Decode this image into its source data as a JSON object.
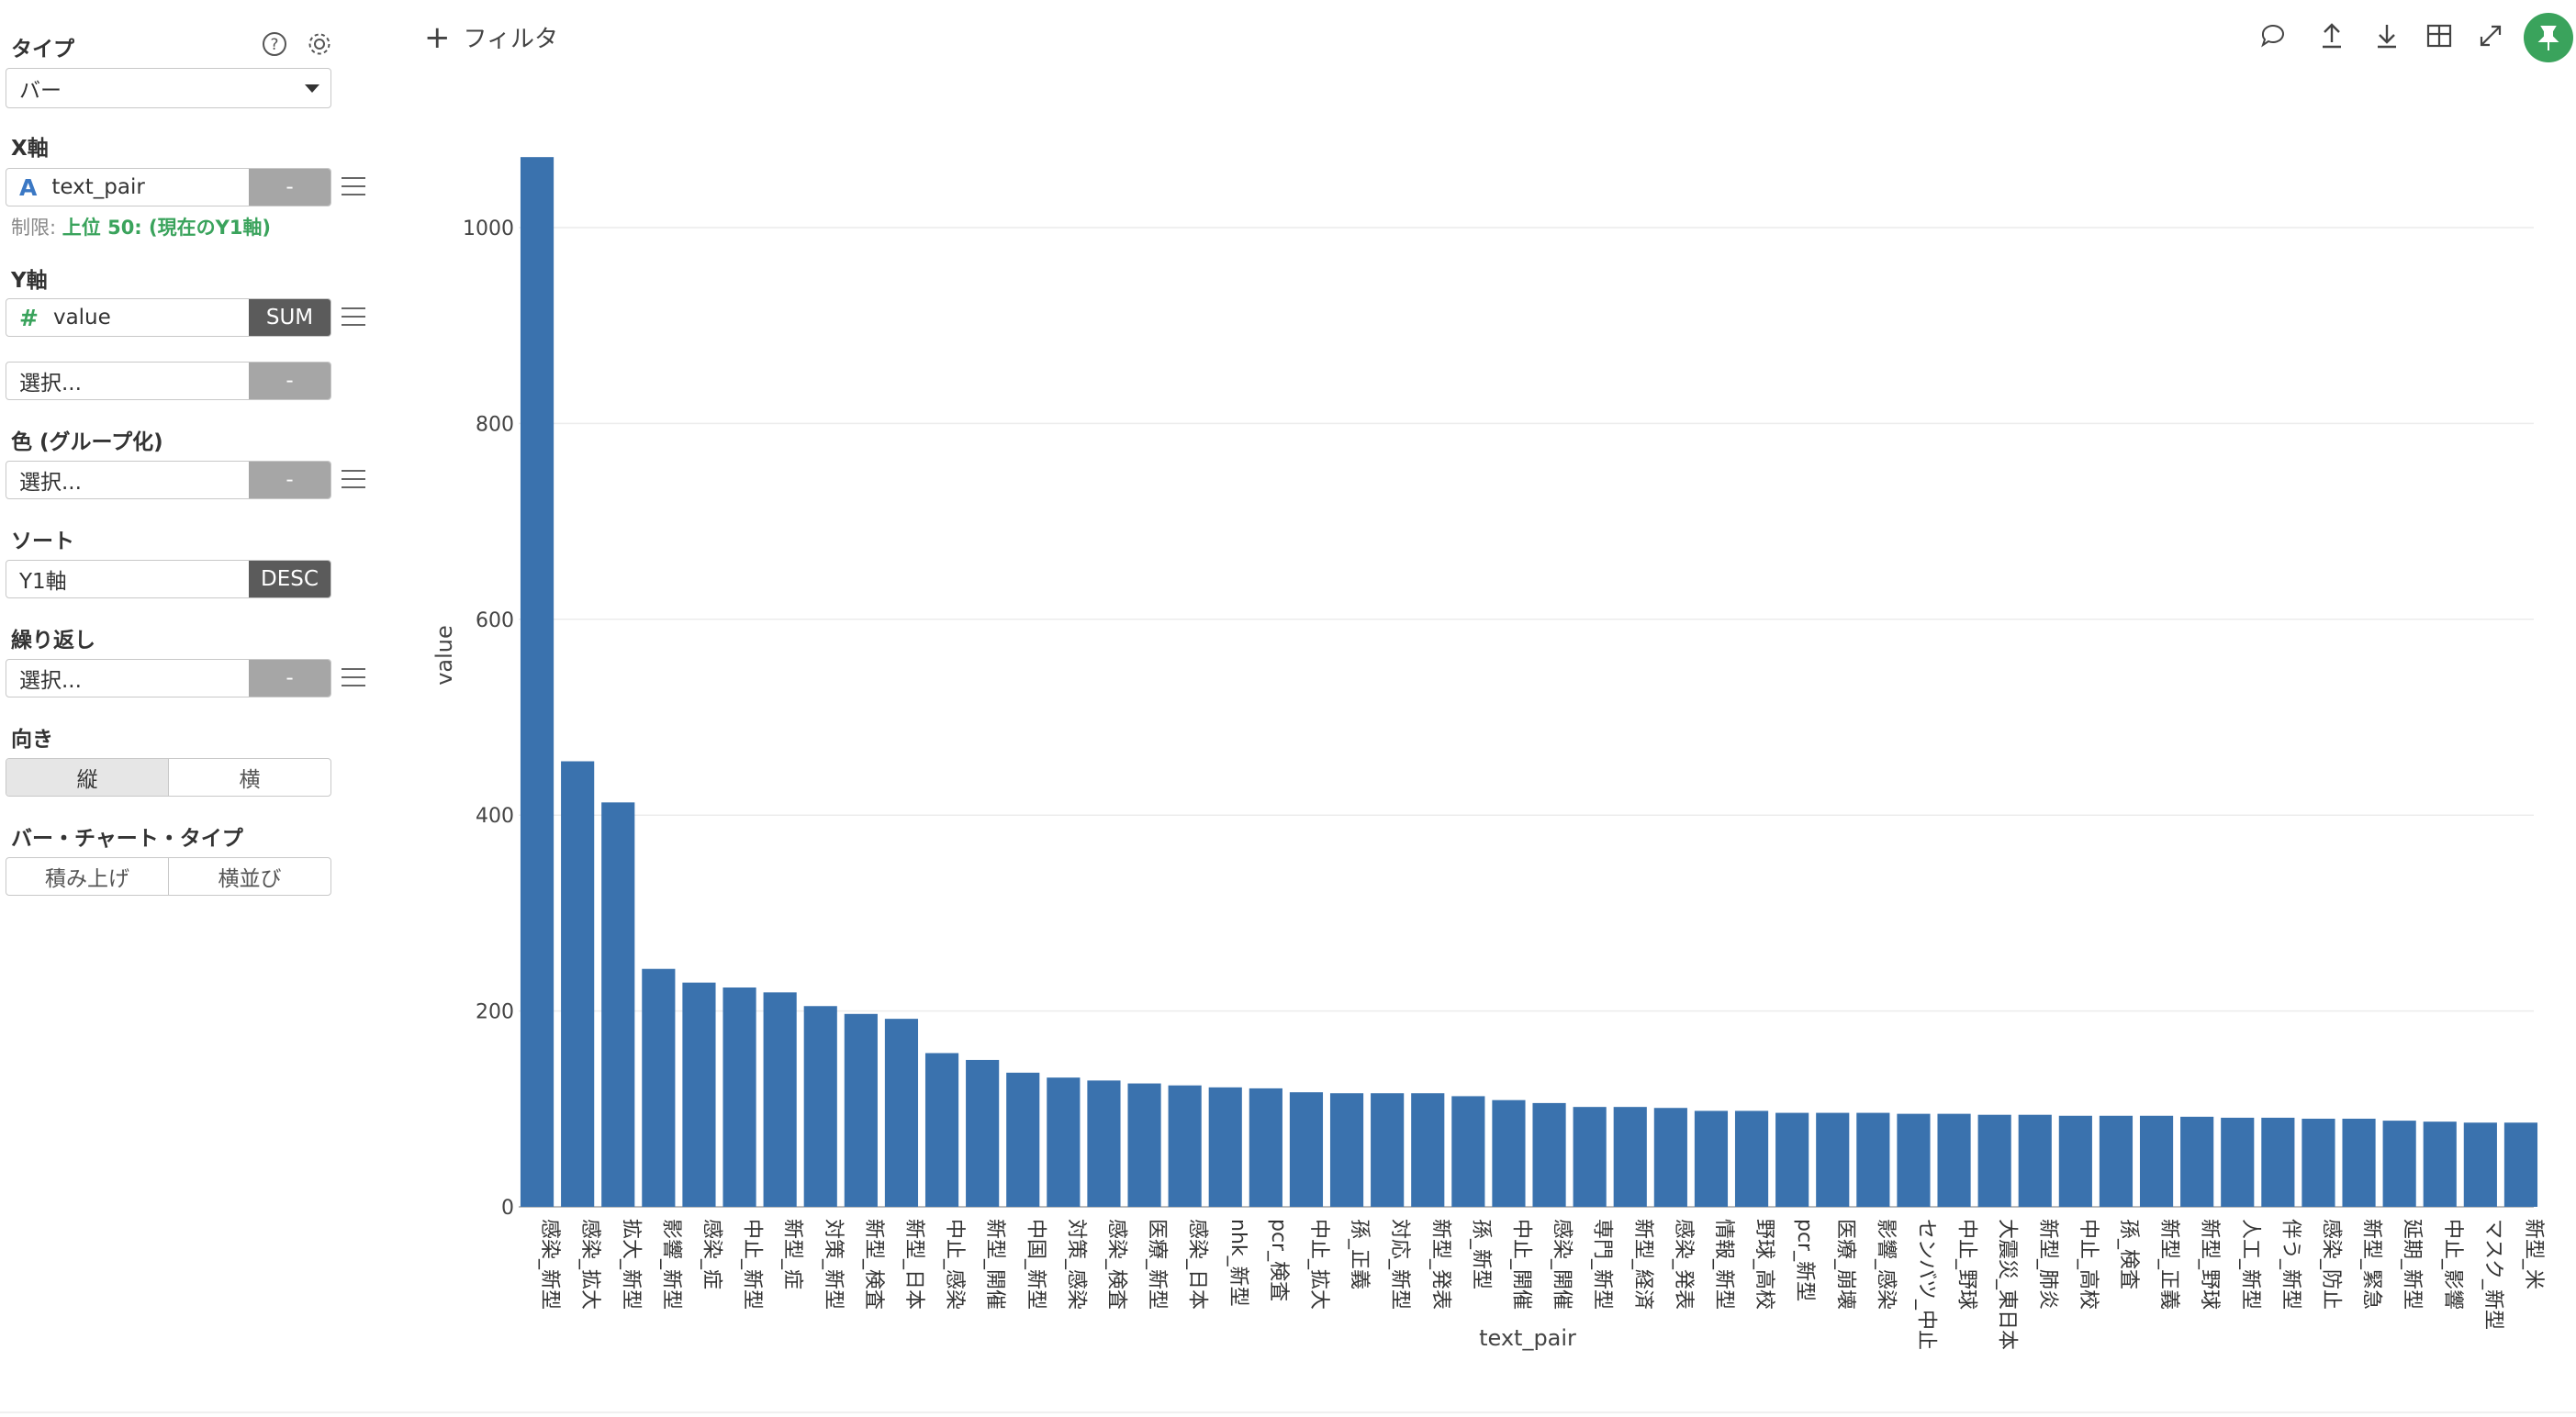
{
  "panel": {
    "type_label": "タイプ",
    "type_value": "バー",
    "xaxis_label": "X軸",
    "xaxis_field": "text_pair",
    "xaxis_field_icon": "A",
    "xaxis_agg": "-",
    "limit_prefix": "制限:",
    "limit_value": "上位 50: (現在のY1軸)",
    "yaxis_label": "Y軸",
    "yaxis_field": "value",
    "yaxis_field_icon": "#",
    "yaxis_agg": "SUM",
    "y2_placeholder": "選択...",
    "y2_agg": "-",
    "color_label": "色 (グループ化)",
    "color_placeholder": "選択...",
    "color_agg": "-",
    "sort_label": "ソート",
    "sort_field": "Y1軸",
    "sort_order": "DESC",
    "repeat_label": "繰り返し",
    "repeat_placeholder": "選択...",
    "repeat_agg": "-",
    "orientation_label": "向き",
    "orientation_vertical": "縦",
    "orientation_horizontal": "横",
    "bar_type_label": "バー・チャート・タイプ",
    "bar_type_stacked": "積み上げ",
    "bar_type_side": "横並び",
    "colors": {
      "accent_green": "#3aa35c",
      "xfield_icon": "#3b78c4",
      "yfield_icon": "#3aa35c"
    }
  },
  "toolbar": {
    "filter_label": "フィルタ",
    "icons": [
      "comment-icon",
      "upload-icon",
      "download-icon",
      "table-icon",
      "expand-icon",
      "pin-icon"
    ]
  },
  "chart_data": {
    "type": "bar",
    "xlabel": "text_pair",
    "ylabel": "value",
    "ylim": [
      0,
      1100
    ],
    "yticks": [
      0,
      200,
      400,
      600,
      800,
      1000
    ],
    "grid": true,
    "bar_color": "#3a72ae",
    "categories": [
      "感染_新型",
      "感染_拡大",
      "拡大_新型",
      "影響_新型",
      "感染_症",
      "中止_新型",
      "新型_症",
      "対策_新型",
      "新型_検査",
      "新型_日本",
      "中止_感染",
      "新型_開催",
      "中国_新型",
      "対策_感染",
      "感染_検査",
      "医療_新型",
      "感染_日本",
      "nhk_新型",
      "pcr_検査",
      "中止_拡大",
      "孫_正義",
      "対応_新型",
      "新型_発表",
      "孫_新型",
      "中止_開催",
      "感染_開催",
      "専門_新型",
      "新型_経済",
      "感染_発表",
      "情報_新型",
      "野球_高校",
      "pcr_新型",
      "医療_崩壊",
      "影響_感染",
      "センバツ_中止",
      "中止_野球",
      "大震災_東日本",
      "新型_肺炎",
      "中止_高校",
      "孫_検査",
      "新型_正義",
      "新型_野球",
      "人工_新型",
      "伴う_新型",
      "感染_防止",
      "新型_緊急",
      "延期_新型",
      "中止_影響",
      "マスク_新型",
      "新型_米"
    ],
    "values": [
      1072,
      455,
      413,
      243,
      229,
      224,
      219,
      205,
      197,
      192,
      157,
      150,
      137,
      132,
      129,
      126,
      124,
      122,
      121,
      117,
      116,
      116,
      116,
      113,
      109,
      106,
      102,
      102,
      101,
      98,
      98,
      96,
      96,
      96,
      95,
      95,
      94,
      94,
      93,
      93,
      93,
      92,
      91,
      91,
      90,
      90,
      88,
      87,
      86,
      86
    ]
  }
}
